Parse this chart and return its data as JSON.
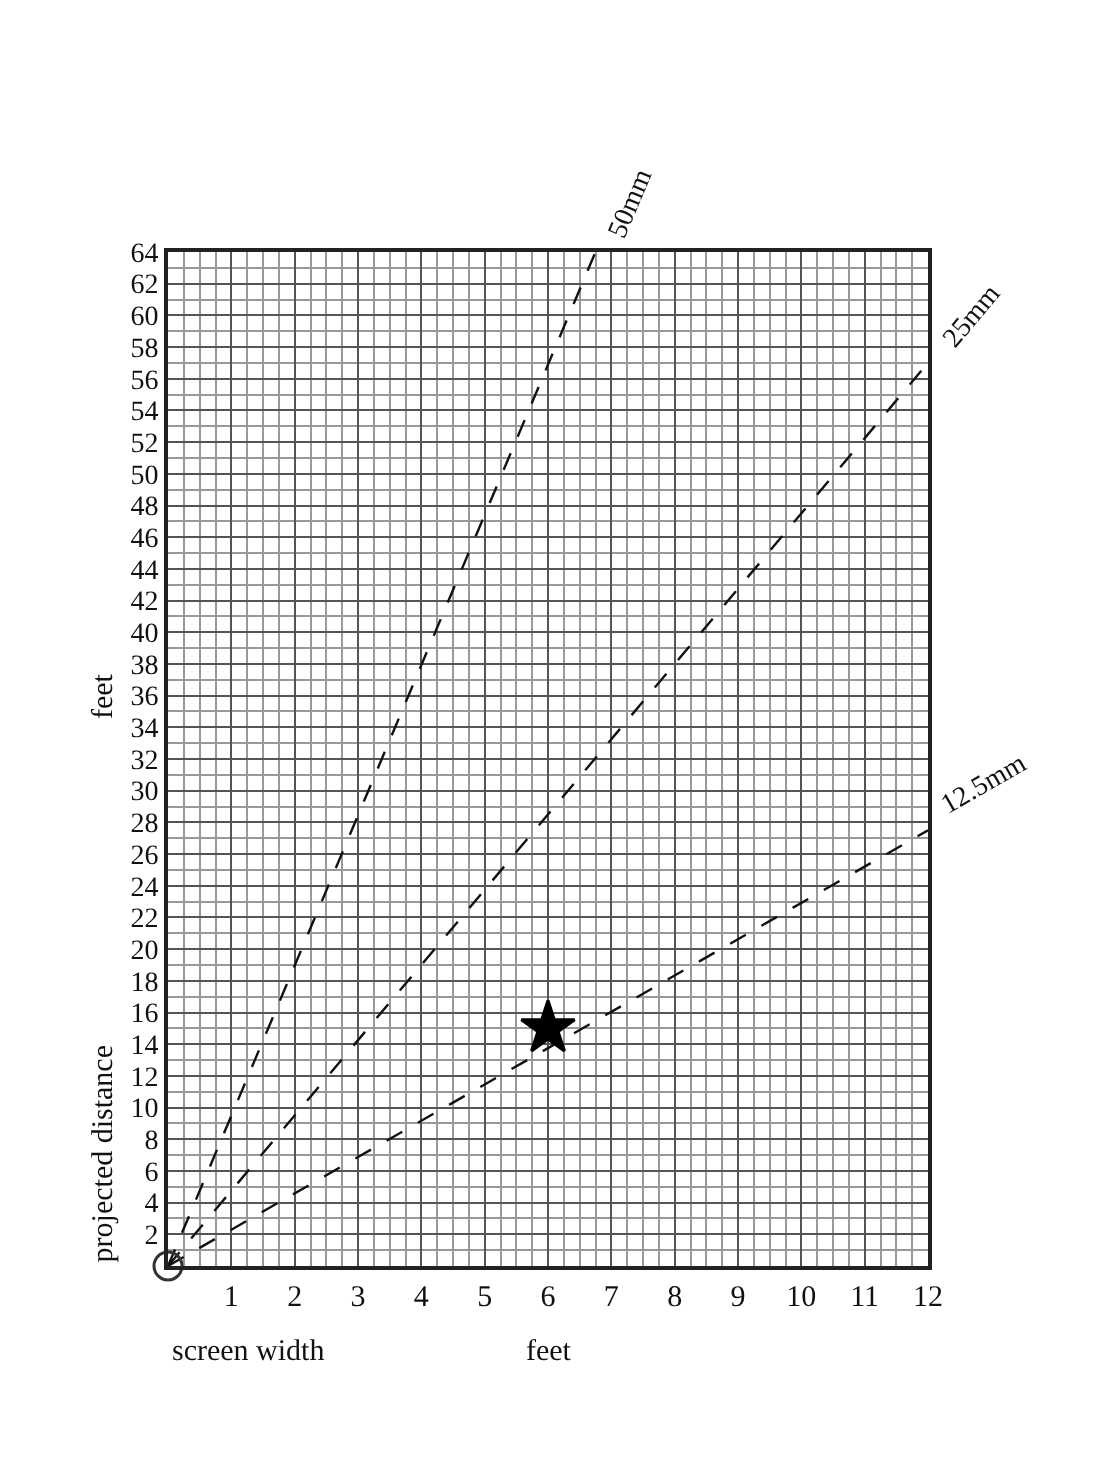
{
  "chart_data": {
    "type": "line",
    "xlabel": "screen width",
    "ylabel": "projected distance",
    "annotations": [
      "feet",
      "feet"
    ],
    "xlim": [
      0,
      12
    ],
    "ylim": [
      0,
      64
    ],
    "xticks": [
      1,
      2,
      3,
      4,
      5,
      6,
      7,
      8,
      9,
      10,
      11,
      12
    ],
    "yticks": [
      2,
      4,
      6,
      8,
      10,
      12,
      14,
      16,
      18,
      20,
      22,
      24,
      26,
      28,
      30,
      32,
      34,
      36,
      38,
      40,
      42,
      44,
      46,
      48,
      50,
      52,
      54,
      56,
      58,
      60,
      62,
      64
    ],
    "grid": true,
    "legend": false,
    "line_style": "dashed",
    "series": [
      {
        "name": "50mm",
        "color": "#111111",
        "x": [
          0,
          6.75
        ],
        "values": [
          0,
          64
        ]
      },
      {
        "name": "25mm",
        "color": "#111111",
        "x": [
          0,
          12
        ],
        "values": [
          0,
          57
        ]
      },
      {
        "name": "12.5mm",
        "color": "#111111",
        "x": [
          0,
          12
        ],
        "values": [
          0,
          27.5
        ]
      },
      {
        "type": "scatter",
        "marker": "star",
        "color": "#000000",
        "x": [
          6
        ],
        "values": [
          15
        ]
      },
      {
        "type": "scatter",
        "marker": "circle",
        "color": "#333333",
        "x": [
          0
        ],
        "values": [
          0
        ]
      }
    ]
  }
}
